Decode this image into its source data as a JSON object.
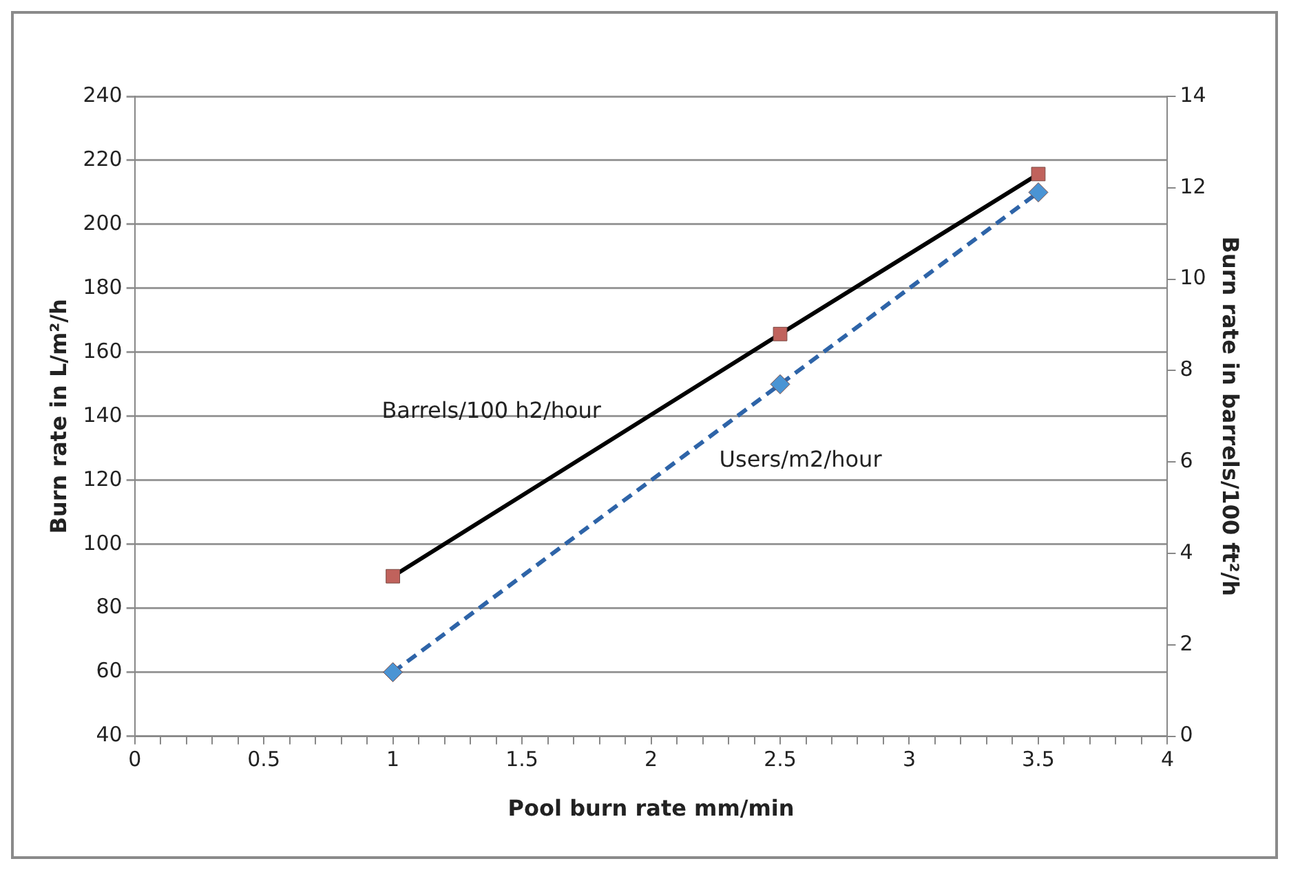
{
  "chart_data": {
    "type": "line",
    "xlabel": "Pool burn rate mm/min",
    "ylabel": "Burn rate in L/m²/h",
    "y2label": "Burn rate in barrels/100 ft²/h",
    "x": [
      1,
      2.5,
      3.5
    ],
    "series": [
      {
        "name": "Barrels/100 h2/hour",
        "color": "#000000",
        "colors": [
          "#c0625c",
          "#c0625c",
          "#c0625c"
        ],
        "marker": "square",
        "line_style": "solid",
        "axis": "y2",
        "values": [
          3.5,
          8.8,
          12.3
        ]
      },
      {
        "name": "Users/m2/hour",
        "color": "#2e64a8",
        "colors": [
          "#4a94d4",
          "#4a94d4",
          "#4a94d4"
        ],
        "marker": "diamond",
        "line_style": "dashed",
        "values": [
          60,
          150,
          210
        ]
      }
    ],
    "xlim": [
      0,
      4
    ],
    "xticks": [
      0,
      {
        "value": 0.1,
        "label": null
      },
      {
        "value": 0.2,
        "label": null
      },
      {
        "value": 0.3,
        "label": null
      },
      {
        "value": 0.4,
        "label": null
      },
      0.5,
      {
        "value": 0.6,
        "label": null
      },
      {
        "value": 0.7,
        "label": null
      },
      {
        "value": 0.8,
        "label": null
      },
      {
        "value": 0.9,
        "label": null
      },
      1,
      {
        "value": 1.1,
        "label": null
      },
      {
        "value": 1.2,
        "label": null
      },
      {
        "value": 1.3,
        "label": null
      },
      {
        "value": 1.4,
        "label": null
      },
      1.5,
      {
        "value": 1.6,
        "label": null
      },
      {
        "value": 1.7,
        "label": null
      },
      {
        "value": 1.8,
        "label": null
      },
      {
        "value": 1.9,
        "label": null
      },
      2,
      {
        "value": 2.1,
        "label": null
      },
      {
        "value": 2.2,
        "label": null
      },
      {
        "value": 2.3,
        "label": null
      },
      {
        "value": 2.4,
        "label": null
      },
      2.5,
      {
        "value": 2.6,
        "label": null
      },
      {
        "value": 2.7,
        "label": null
      },
      {
        "value": 2.8,
        "label": null
      },
      {
        "value": 2.9,
        "label": null
      },
      3,
      {
        "value": 3.1,
        "label": null
      },
      {
        "value": 3.2,
        "label": null
      },
      {
        "value": 3.3,
        "label": null
      },
      {
        "value": 3.4,
        "label": null
      },
      3.5,
      {
        "value": 3.6,
        "label": null
      },
      {
        "value": 3.7,
        "label": null
      },
      {
        "value": 3.8,
        "label": null
      },
      {
        "value": 3.9,
        "label": null
      },
      4
    ],
    "ylim": [
      40,
      240
    ],
    "yticks": [
      40,
      60,
      80,
      100,
      120,
      140,
      160,
      180,
      200,
      220,
      240
    ],
    "y2lim": [
      0,
      14
    ],
    "y2ticks": [
      0,
      2,
      4,
      6,
      8,
      10,
      12,
      14
    ],
    "grid": "y",
    "legend": false
  }
}
